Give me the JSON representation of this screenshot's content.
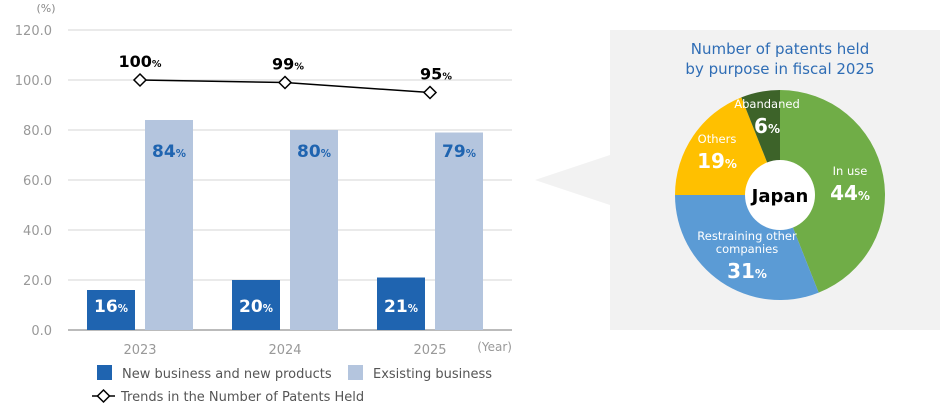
{
  "chart_data": [
    {
      "type": "bar",
      "ylabel": "(%)",
      "xlabel": "(Year)",
      "ylim": [
        0,
        120
      ],
      "yticks": [
        "0.0",
        "20.0",
        "40.0",
        "60.0",
        "80.0",
        "100.0",
        "120.0"
      ],
      "grid": true,
      "categories": [
        "2023",
        "2024",
        "2025"
      ],
      "series": [
        {
          "name": "New business and new products",
          "type": "bar",
          "color": "#1f64b0",
          "values": [
            16,
            20,
            21
          ],
          "labels": [
            "16",
            "20",
            "21"
          ]
        },
        {
          "name": "Exsisting business",
          "type": "bar",
          "color": "#b4c5de",
          "values": [
            84,
            80,
            79
          ],
          "labels": [
            "84",
            "80",
            "79"
          ]
        },
        {
          "name": "Trends in the Number of Patents Held",
          "type": "line",
          "color": "#000000",
          "values": [
            100,
            99,
            95
          ],
          "labels": [
            "100",
            "99",
            "95"
          ]
        }
      ],
      "unit": "%",
      "legend": "bottom"
    },
    {
      "type": "pie",
      "title": [
        "Number of patents held",
        "by purpose in fiscal 2025"
      ],
      "center_label": "Japan",
      "unit": "%",
      "slices": [
        {
          "label": "In use",
          "value": 44,
          "color": "#70ad47"
        },
        {
          "label": "Restraining other companies",
          "label_lines": [
            "Restraining other",
            "companies"
          ],
          "value": 31,
          "color": "#5b9bd5"
        },
        {
          "label": "Others",
          "value": 19,
          "color": "#ffc000"
        },
        {
          "label": "Abandaned",
          "value": 6,
          "color": "#3d6329"
        }
      ]
    }
  ]
}
